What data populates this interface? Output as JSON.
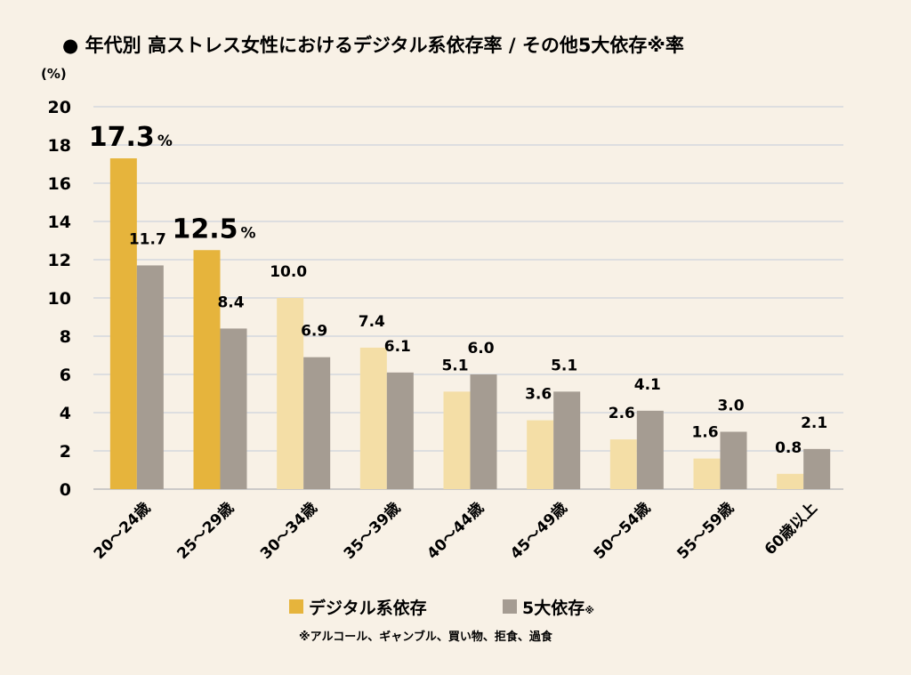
{
  "chart_data": {
    "type": "bar",
    "title": "● 年代別 高ストレス女性におけるデジタル系依存率 / その他5大依存※率",
    "ylabel": "(%)",
    "ylim": [
      0,
      20
    ],
    "yticks": [
      0,
      2,
      4,
      6,
      8,
      10,
      12,
      14,
      16,
      18,
      20
    ],
    "grid": true,
    "categories": [
      "20～24歳",
      "25～29歳",
      "30～34歳",
      "35～39歳",
      "40～44歳",
      "45～49歳",
      "50～54歳",
      "55～59歳",
      "60歳以上"
    ],
    "series": [
      {
        "name": "デジタル系依存",
        "values": [
          17.3,
          12.5,
          10.0,
          7.4,
          5.1,
          3.6,
          2.6,
          1.6,
          0.8
        ],
        "labels": [
          "17.3",
          "12.5",
          "10.0",
          "7.4",
          "5.1",
          "3.6",
          "2.6",
          "1.6",
          "0.8"
        ],
        "color": "#e6b43c",
        "light_color": "#f4dea6",
        "highlighted": [
          true,
          true,
          false,
          false,
          false,
          false,
          false,
          false,
          false
        ],
        "highlight_suffix": "%"
      },
      {
        "name": "5大依存",
        "name_mark": "※",
        "values": [
          11.7,
          8.4,
          6.9,
          6.1,
          6.0,
          5.1,
          4.1,
          3.0,
          2.1
        ],
        "labels": [
          "11.7",
          "8.4",
          "6.9",
          "6.1",
          "6.0",
          "5.1",
          "4.1",
          "3.0",
          "2.1"
        ],
        "color": "#a59c92"
      }
    ],
    "legend_position": "bottom-center",
    "note": "※アルコール、ギャンブル、買い物、拒食、過食"
  }
}
